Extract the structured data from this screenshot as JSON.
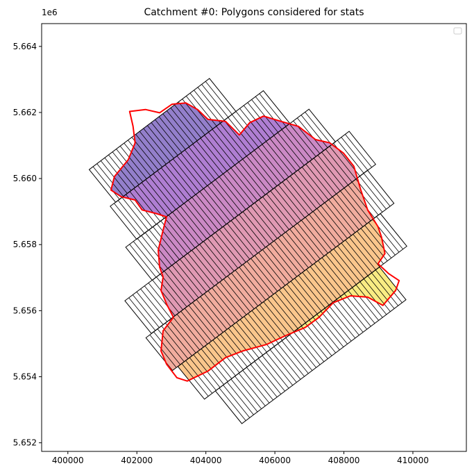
{
  "chart_data": {
    "type": "polygons",
    "title": "Catchment #0: Polygons considered for stats",
    "y_offset_label": "1e6",
    "xlim": [
      399240,
      411550
    ],
    "ylim": [
      5.65174,
      5.66469
    ],
    "xticks": [
      400000,
      402000,
      404000,
      406000,
      408000,
      410000
    ],
    "yticks": [
      5.652,
      5.654,
      5.656,
      5.658,
      {
        "value": 5.66,
        "label": "5.660"
      },
      5.662,
      5.664
    ],
    "strips": [
      {
        "color": "#4b2aa8",
        "x": [
          400618,
          404104,
          404873,
          401386
        ],
        "y": [
          5.66027,
          5.66303,
          5.66203,
          5.65928
        ]
      },
      {
        "color": "#7a28b4",
        "x": [
          401227,
          405666,
          406432,
          401994
        ],
        "y": [
          5.65916,
          5.66266,
          5.66167,
          5.65816
        ]
      },
      {
        "color": "#a83a9e",
        "x": [
          401676,
          406988,
          407756,
          402445
        ],
        "y": [
          5.65792,
          5.6621,
          5.66111,
          5.65692
        ]
      },
      {
        "color": "#cc5580",
        "x": [
          401652,
          408153,
          408921,
          402420
        ],
        "y": [
          5.6563,
          5.66143,
          5.66043,
          5.65531
        ]
      },
      {
        "color": "#e8745e",
        "x": [
          402264,
          408684,
          409452,
          403032
        ],
        "y": [
          5.65518,
          5.66025,
          5.65925,
          5.65419
        ]
      },
      {
        "color": "#f7a040",
        "x": [
          403189,
          409056,
          409825,
          403958
        ],
        "y": [
          5.65431,
          5.65894,
          5.65795,
          5.65332
        ]
      },
      {
        "color": "#f5e030",
        "x": [
          404276,
          409032,
          409800,
          405044
        ],
        "y": [
          5.65357,
          5.65732,
          5.65633,
          5.65258
        ]
      }
    ],
    "catchment": {
      "color": "#ff0000",
      "x": [
        401790,
        402250,
        402660,
        403020,
        403420,
        403760,
        404060,
        404570,
        404970,
        405270,
        405670,
        406180,
        406680,
        407180,
        407590,
        407990,
        408290,
        408490,
        408690,
        408990,
        409090,
        409190,
        408990,
        409300,
        409600,
        409500,
        409130,
        408690,
        408190,
        407690,
        407280,
        406880,
        406280,
        405770,
        405070,
        404570,
        404060,
        403460,
        403160,
        402860,
        402700,
        402760,
        403060,
        402860,
        402700,
        402760,
        402660,
        402620,
        402760,
        402860,
        402560,
        402150,
        401950,
        401550,
        401250,
        401350,
        401750,
        401950,
        401890
      ],
      "y": [
        5.66203,
        5.66209,
        5.66199,
        5.66225,
        5.66229,
        5.66209,
        5.66179,
        5.66173,
        5.66132,
        5.66169,
        5.66189,
        5.66173,
        5.66158,
        5.66118,
        5.66108,
        5.66077,
        5.66037,
        5.65965,
        5.65905,
        5.65854,
        5.65823,
        5.65773,
        5.65742,
        5.65712,
        5.65691,
        5.65661,
        5.65616,
        5.65641,
        5.65645,
        5.65624,
        5.6558,
        5.65549,
        5.65523,
        5.65498,
        5.65478,
        5.65458,
        5.65417,
        5.65387,
        5.65397,
        5.65438,
        5.65478,
        5.65539,
        5.6558,
        5.6562,
        5.65661,
        5.65702,
        5.65732,
        5.65783,
        5.65844,
        5.65884,
        5.65894,
        5.65905,
        5.65935,
        5.65945,
        5.65965,
        5.66006,
        5.66057,
        5.66108,
        5.66158
      ]
    }
  }
}
